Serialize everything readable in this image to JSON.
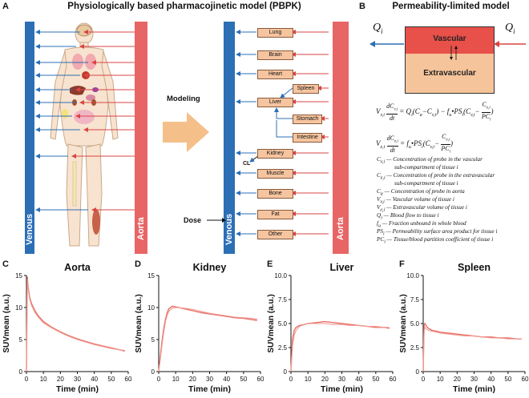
{
  "panel_a": {
    "letter": "A",
    "title": "Physiologically based pharmacojinetic model (PBPK)",
    "venous_label": "Venous",
    "aorta_label": "Aorta",
    "modeling_label": "Modeling",
    "dose_label": "Dose",
    "cl_label": "CL",
    "organs": [
      "Lung",
      "Brain",
      "Heart",
      "Spleen",
      "Liver",
      "Stomach",
      "Intestine",
      "Kidney",
      "Muscle",
      "Bone",
      "Fat",
      "Other"
    ]
  },
  "panel_b": {
    "letter": "B",
    "title": "Permeability-limited model",
    "vascular_label": "Vascular",
    "extravascular_label": "Extravascular",
    "flow_left": "Q",
    "flow_right": "Q",
    "flow_sub": "i",
    "eq1_lhs": "V",
    "eq2_lhs": "V",
    "legend": [
      {
        "sym": "C",
        "sub": "v,i",
        "lines": [
          "Concentration of probe in the vascular",
          "sub-compartment of tissue i"
        ]
      },
      {
        "sym": "C",
        "sub": "e,i",
        "lines": [
          "Concentration of probe in the extravascular",
          "sub-compartment of tissue i"
        ]
      },
      {
        "sym": "C",
        "sub": "a",
        "lines": [
          "Concentration of probe in aorta"
        ]
      },
      {
        "sym": "V",
        "sub": "v,i",
        "lines": [
          "Vascular volume of tissue i"
        ]
      },
      {
        "sym": "V",
        "sub": "e,i",
        "lines": [
          "Extravascular volume of tissue i"
        ]
      },
      {
        "sym": "Q",
        "sub": "i",
        "lines": [
          "Blood flow to tissue i"
        ]
      },
      {
        "sym": "f",
        "sub": "u",
        "lines": [
          "Fraction unbound in whole blood"
        ]
      },
      {
        "sym": "PS",
        "sub": "i",
        "lines": [
          "Permeability surface area product for tissue i"
        ]
      },
      {
        "sym": "PC",
        "sub": "i",
        "lines": [
          "Tissue/blood partition coefficient of tissue i"
        ]
      }
    ]
  },
  "chart_data": [
    {
      "letter": "C",
      "type": "line",
      "title": "Aorta",
      "xlabel": "Time (min)",
      "ylabel": "SUVmean (a.u.)",
      "xlim": [
        0,
        60
      ],
      "ylim": [
        0,
        15
      ],
      "xticks": [
        0,
        10,
        20,
        30,
        40,
        50,
        60
      ],
      "yticks": [
        0,
        5,
        10,
        15
      ],
      "series": [
        {
          "name": "measured",
          "x": [
            0,
            0.5,
            1,
            2,
            3,
            5,
            7,
            10,
            15,
            20,
            25,
            30,
            35,
            40,
            45,
            50,
            55,
            58
          ],
          "y": [
            0,
            14.8,
            13.2,
            11.5,
            10.6,
            9.5,
            8.7,
            7.8,
            6.9,
            6.2,
            5.6,
            5.1,
            4.7,
            4.3,
            4.0,
            3.7,
            3.4,
            3.2
          ]
        },
        {
          "name": "fitted",
          "x": [
            0,
            0.5,
            1,
            2,
            3,
            5,
            7,
            10,
            15,
            20,
            25,
            30,
            35,
            40,
            45,
            50,
            55,
            58
          ],
          "y": [
            0,
            14.5,
            13.0,
            11.2,
            10.3,
            9.2,
            8.5,
            7.6,
            6.8,
            6.1,
            5.5,
            5.0,
            4.6,
            4.2,
            3.9,
            3.6,
            3.4,
            3.3
          ]
        }
      ]
    },
    {
      "letter": "D",
      "type": "line",
      "title": "Kidney",
      "xlabel": "Time (min)",
      "ylabel": "SUVmean (a.u.)",
      "xlim": [
        0,
        60
      ],
      "ylim": [
        0,
        15
      ],
      "xticks": [
        0,
        10,
        20,
        30,
        40,
        50,
        60
      ],
      "yticks": [
        0,
        5,
        10,
        15
      ],
      "series": [
        {
          "name": "measured",
          "x": [
            0,
            1,
            2,
            3,
            4,
            5,
            6,
            8,
            10,
            15,
            20,
            25,
            30,
            35,
            40,
            45,
            50,
            55,
            58
          ],
          "y": [
            0,
            2.5,
            4.8,
            6.8,
            8.2,
            9.2,
            9.8,
            10.2,
            10.1,
            9.8,
            9.5,
            9.2,
            9.0,
            8.8,
            8.6,
            8.4,
            8.3,
            8.1,
            8.0
          ]
        },
        {
          "name": "fitted",
          "x": [
            0,
            1,
            2,
            3,
            4,
            5,
            6,
            8,
            10,
            15,
            20,
            25,
            30,
            35,
            40,
            45,
            50,
            55,
            58
          ],
          "y": [
            0,
            2.0,
            4.2,
            6.2,
            7.8,
            8.8,
            9.4,
            9.9,
            10.0,
            9.9,
            9.7,
            9.4,
            9.1,
            8.9,
            8.7,
            8.5,
            8.4,
            8.3,
            8.2
          ]
        }
      ]
    },
    {
      "letter": "E",
      "type": "line",
      "title": "Liver",
      "xlabel": "Time (min)",
      "ylabel": "SUVmean (a.u.)",
      "xlim": [
        0,
        60
      ],
      "ylim": [
        0,
        10
      ],
      "xticks": [
        0,
        10,
        20,
        30,
        40,
        50,
        60
      ],
      "yticks": [
        0,
        2.5,
        5.0,
        7.5,
        10.0
      ],
      "ytick_labels": [
        "0",
        "2.5",
        "5.0",
        "7.5",
        "10.0"
      ],
      "series": [
        {
          "name": "measured",
          "x": [
            0,
            0.5,
            1,
            2,
            3,
            5,
            8,
            10,
            15,
            20,
            25,
            30,
            35,
            40,
            45,
            50,
            55,
            58
          ],
          "y": [
            0,
            2.0,
            3.5,
            4.3,
            4.6,
            4.8,
            4.9,
            5.0,
            5.1,
            5.2,
            5.1,
            5.0,
            4.9,
            4.8,
            4.7,
            4.6,
            4.6,
            4.5
          ]
        },
        {
          "name": "fitted",
          "x": [
            0,
            0.5,
            1,
            2,
            3,
            5,
            8,
            10,
            15,
            20,
            25,
            30,
            35,
            40,
            45,
            50,
            55,
            58
          ],
          "y": [
            0,
            1.5,
            2.8,
            3.8,
            4.3,
            4.7,
            4.9,
            5.0,
            5.0,
            5.0,
            4.9,
            4.9,
            4.8,
            4.8,
            4.7,
            4.7,
            4.6,
            4.6
          ]
        }
      ]
    },
    {
      "letter": "F",
      "type": "line",
      "title": "Spleen",
      "xlabel": "Time (min)",
      "ylabel": "SUVmean (a.u.)",
      "xlim": [
        0,
        60
      ],
      "ylim": [
        0,
        10
      ],
      "xticks": [
        0,
        10,
        20,
        30,
        40,
        50,
        60
      ],
      "yticks": [
        0,
        2.5,
        5.0,
        7.5,
        10.0
      ],
      "ytick_labels": [
        "0",
        "2.5",
        "5.0",
        "7.5",
        "10.0"
      ],
      "series": [
        {
          "name": "measured",
          "x": [
            0,
            0.5,
            1,
            2,
            3,
            5,
            8,
            10,
            15,
            20,
            25,
            30,
            35,
            40,
            45,
            50,
            55,
            58
          ],
          "y": [
            0,
            4.8,
            5.0,
            4.7,
            4.5,
            4.3,
            4.2,
            4.1,
            4.0,
            3.9,
            3.8,
            3.7,
            3.6,
            3.6,
            3.5,
            3.5,
            3.4,
            3.4
          ]
        },
        {
          "name": "fitted",
          "x": [
            0,
            0.5,
            1,
            2,
            3,
            5,
            8,
            10,
            15,
            20,
            25,
            30,
            35,
            40,
            45,
            50,
            55,
            58
          ],
          "y": [
            0,
            4.2,
            4.6,
            4.4,
            4.3,
            4.2,
            4.1,
            4.0,
            3.9,
            3.8,
            3.7,
            3.7,
            3.6,
            3.5,
            3.5,
            3.4,
            3.4,
            3.4
          ]
        }
      ]
    }
  ]
}
